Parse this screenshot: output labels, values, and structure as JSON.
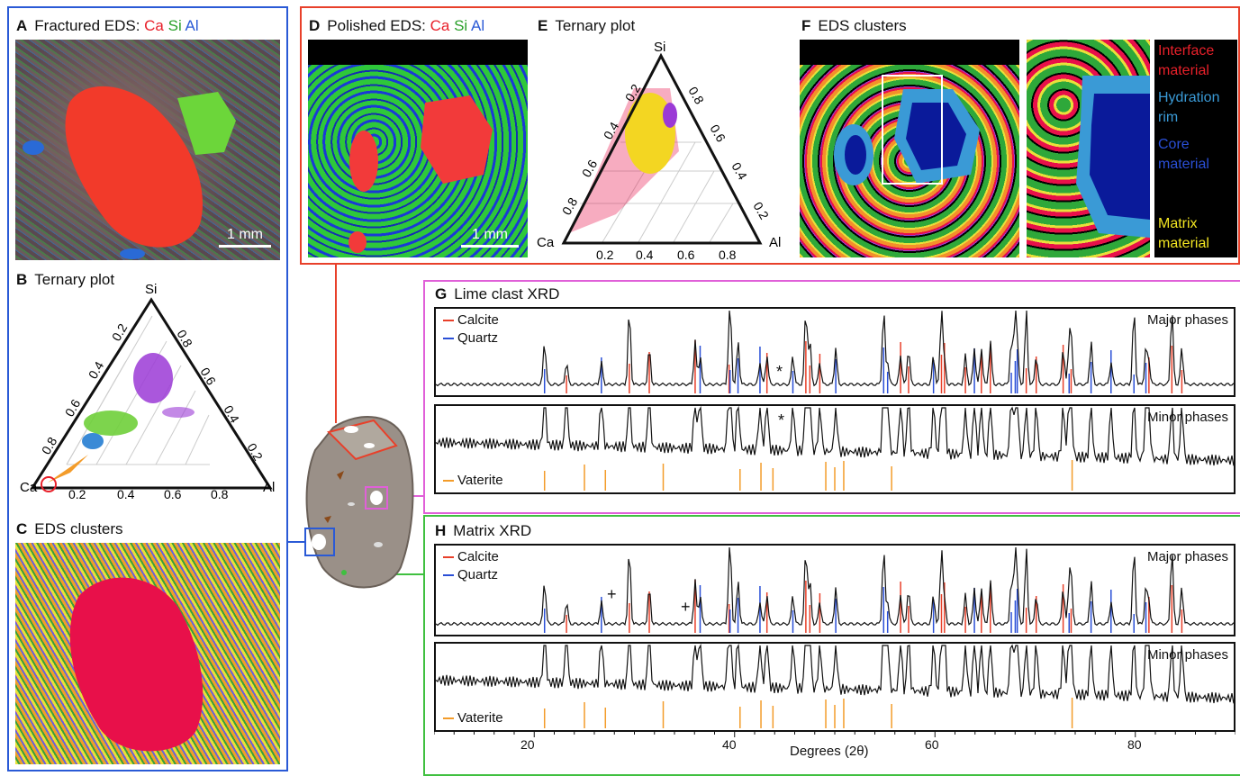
{
  "panels": {
    "A": {
      "letter": "A",
      "title": "Fractured EDS: ",
      "ca": "Ca",
      "si": "Si",
      "al": "Al",
      "scale": "1 mm"
    },
    "B": {
      "letter": "B",
      "title": "Ternary plot"
    },
    "C": {
      "letter": "C",
      "title": "EDS clusters"
    },
    "D": {
      "letter": "D",
      "title": "Polished EDS: ",
      "ca": "Ca",
      "si": "Si",
      "al": "Al",
      "scale": "1 mm"
    },
    "E": {
      "letter": "E",
      "title": "Ternary plot"
    },
    "F": {
      "letter": "F",
      "title": "EDS clusters",
      "legend": [
        {
          "text": "Interface material",
          "color": "#e8202a"
        },
        {
          "text": "Hydration rim",
          "color": "#3a9ad6"
        },
        {
          "text": "Core material",
          "color": "#1f45d6"
        },
        {
          "text": "Matrix material",
          "color": "#f3e622"
        }
      ]
    },
    "G": {
      "letter": "G",
      "title": "Lime clast XRD",
      "major": "Major phases",
      "minor": "Minor phases",
      "calcite": "Calcite",
      "quartz": "Quartz",
      "vaterite": "Vaterite",
      "marker": "*"
    },
    "H": {
      "letter": "H",
      "title": "Matrix XRD",
      "major": "Major phases",
      "minor": "Minor phases",
      "calcite": "Calcite",
      "quartz": "Quartz",
      "vaterite": "Vaterite",
      "marker": "+"
    }
  },
  "ternary": {
    "apex_top": "Si",
    "apex_left": "Ca",
    "apex_right": "Al",
    "left_ticks": [
      "0.2",
      "0.4",
      "0.6",
      "0.8"
    ],
    "right_ticks": [
      "0.8",
      "0.6",
      "0.4",
      "0.2"
    ],
    "bottom_ticks": [
      "0.2",
      "0.4",
      "0.6",
      "0.8"
    ]
  },
  "xrd_axis": {
    "xlabel": "Degrees (2θ)",
    "ticks": [
      "20",
      "40",
      "60",
      "80"
    ],
    "xlim": [
      10,
      90
    ]
  },
  "colors": {
    "calcite": "#e8402a",
    "quartz": "#2a4fd6",
    "vaterite": "#f39c2a",
    "frame_blue": "#2a5ad6",
    "frame_red": "#e8402a",
    "frame_pink": "#e060d8",
    "frame_green": "#40c040"
  },
  "chart_data": [
    {
      "type": "line",
      "title": "Lime clast XRD",
      "subtitle": "Major phases",
      "xlabel": "Degrees (2θ)",
      "xlim": [
        10,
        90
      ],
      "series": [
        {
          "name": "Calcite",
          "peaks": [
            23.1,
            29.4,
            31.4,
            36.0,
            39.4,
            43.2,
            47.1,
            47.5,
            48.5,
            56.6,
            57.4,
            60.7,
            61.0,
            63.1,
            64.7,
            65.6,
            69.2,
            70.2,
            72.9,
            73.7,
            81.5,
            83.8,
            84.8
          ]
        },
        {
          "name": "Quartz",
          "peaks": [
            20.9,
            26.6,
            36.5,
            39.5,
            40.3,
            42.5,
            45.8,
            50.1,
            54.9,
            55.3,
            59.9,
            64.0,
            67.7,
            68.1,
            68.3,
            73.5,
            75.7,
            77.7,
            80.0,
            81.2
          ]
        }
      ]
    },
    {
      "type": "line",
      "title": "Lime clast XRD",
      "subtitle": "Minor phases",
      "xlim": [
        10,
        90
      ],
      "series": [
        {
          "name": "Vaterite",
          "peaks": [
            20.9,
            24.9,
            27.0,
            32.8,
            40.5,
            42.6,
            43.8,
            49.1,
            50.0,
            50.9,
            55.7,
            73.8
          ]
        }
      ]
    },
    {
      "type": "line",
      "title": "Matrix XRD",
      "subtitle": "Major phases",
      "xlim": [
        10,
        90
      ],
      "series": [
        {
          "name": "Calcite",
          "peaks": [
            23.1,
            29.4,
            31.4,
            36.0,
            39.4,
            43.2,
            47.1,
            47.5,
            48.5,
            56.6,
            57.4,
            60.7,
            61.0,
            63.1,
            64.7,
            65.6,
            69.2,
            70.2,
            72.9,
            73.7,
            81.5,
            83.8,
            84.8
          ]
        },
        {
          "name": "Quartz",
          "peaks": [
            20.9,
            26.6,
            36.5,
            39.5,
            40.3,
            42.5,
            45.8,
            50.1,
            54.9,
            55.3,
            59.9,
            64.0,
            67.7,
            68.1,
            68.3,
            73.5,
            75.7,
            77.7,
            80.0,
            81.2
          ]
        }
      ]
    },
    {
      "type": "line",
      "title": "Matrix XRD",
      "subtitle": "Minor phases",
      "xlim": [
        10,
        90
      ],
      "series": [
        {
          "name": "Vaterite",
          "peaks": [
            20.9,
            24.9,
            27.0,
            32.8,
            40.5,
            42.6,
            43.8,
            49.1,
            50.0,
            50.9,
            55.7,
            73.8
          ]
        }
      ]
    }
  ]
}
